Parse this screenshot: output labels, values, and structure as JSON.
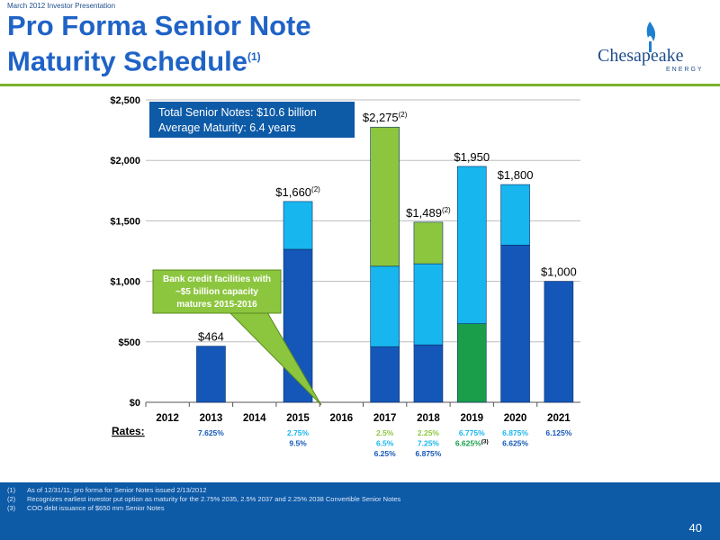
{
  "header": {
    "top_label": "March 2012 Investor Presentation",
    "title_line1": "Pro Forma Senior Note",
    "title_line2": "Maturity Schedule",
    "title_sup": "(1)"
  },
  "logo": {
    "name": "Chesapeake",
    "sub": "ENERGY"
  },
  "chart_data": {
    "type": "bar",
    "stacked": true,
    "categories": [
      "2012",
      "2013",
      "2014",
      "2015",
      "2016",
      "2017",
      "2018",
      "2019",
      "2020",
      "2021"
    ],
    "ylim": [
      0,
      2500
    ],
    "yticks": [
      "$0",
      "$500",
      "$1,000",
      "$1,500",
      "$2,000",
      "$2,500"
    ],
    "ytick_values": [
      0,
      500,
      1000,
      1500,
      2000,
      2500
    ],
    "grid": true,
    "series": [
      {
        "values": [
          0,
          464,
          0,
          1265,
          0,
          460,
          475,
          0,
          1300,
          1000
        ],
        "color": "#1457b8"
      },
      {
        "values": [
          0,
          0,
          0,
          0,
          0,
          0,
          0,
          650,
          0,
          0
        ],
        "color": "#1a9e4a"
      },
      {
        "values": [
          0,
          0,
          0,
          395,
          0,
          665,
          670,
          1300,
          500,
          0
        ],
        "color": "#18b6ee"
      },
      {
        "values": [
          0,
          0,
          0,
          0,
          0,
          1150,
          344,
          0,
          0,
          0
        ],
        "color": "#8cc63f"
      }
    ],
    "totals": [
      "",
      "$464",
      "",
      "$1,660",
      "",
      "$2,275",
      "$1,489",
      "$1,950",
      "$1,800",
      "$1,000"
    ],
    "total_sups": [
      "",
      "",
      "",
      "(2)",
      "",
      "(2)",
      "(2)",
      "",
      "",
      ""
    ],
    "rates_label": "Rates:",
    "rates": [
      [],
      [
        {
          "text": "7.625%",
          "color": "#1457b8"
        }
      ],
      [],
      [
        {
          "text": "2.75%",
          "color": "#18b6ee"
        },
        {
          "text": "9.5%",
          "color": "#1457b8"
        }
      ],
      [],
      [
        {
          "text": "2.5%",
          "color": "#8cc63f"
        },
        {
          "text": "6.5%",
          "color": "#18b6ee"
        },
        {
          "text": "6.25%",
          "color": "#1457b8"
        }
      ],
      [
        {
          "text": "2.25%",
          "color": "#8cc63f"
        },
        {
          "text": "7.25%",
          "color": "#18b6ee"
        },
        {
          "text": "6.875%",
          "color": "#1457b8"
        }
      ],
      [
        {
          "text": "6.775%",
          "color": "#18b6ee"
        },
        {
          "text": "6.625%",
          "color": "#1a9e4a",
          "sup": "(3)"
        }
      ],
      [
        {
          "text": "6.875%",
          "color": "#18b6ee"
        },
        {
          "text": "6.625%",
          "color": "#1457b8"
        }
      ],
      [
        {
          "text": "6.125%",
          "color": "#1457b8"
        }
      ]
    ]
  },
  "summary_box": {
    "line1": "Total Senior Notes: $10.6 billion",
    "line2": "Average Maturity: 6.4 years"
  },
  "callout": {
    "line1": "Bank credit facilities with",
    "line2": "~$5 billion capacity",
    "line3": "matures 2015-2016"
  },
  "footnotes": [
    {
      "num": "(1)",
      "text": "As of 12/31/11; pro forma for Senior Notes issued 2/13/2012"
    },
    {
      "num": "(2)",
      "text": "Recognizes earliest investor put option as maturity for the 2.75% 2035, 2.5% 2037 and 2.25% 2038 Convertible Senior Notes"
    },
    {
      "num": "(3)",
      "text": "COO debt issuance of $650 mm Senior Notes"
    }
  ],
  "page_number": "40"
}
